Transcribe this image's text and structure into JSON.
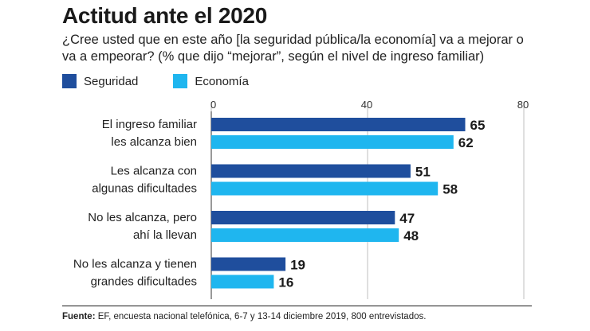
{
  "title": "Actitud ante el 2020",
  "subtitle": "¿Cree usted que en este año [la seguridad pública/la economía] va a mejorar o va a empeorar? (% que dijo “mejorar”, según el nivel de ingreso familiar)",
  "source_label": "Fuente:",
  "source_text": " EF, encuesta nacional telefónica, 6-7 y 13-14 diciembre 2019, 800 entrevistados.",
  "colors": {
    "seguridad": "#1f4e9d",
    "economia": "#1fb6ef",
    "text": "#1a1a1a",
    "grid": "#bfbfbf"
  },
  "chart_data": {
    "type": "bar",
    "orientation": "horizontal",
    "title": "Actitud ante el 2020",
    "xlim": [
      0,
      80
    ],
    "xticks": [
      0,
      40,
      80
    ],
    "grid": true,
    "legend_position": "top-left",
    "categories": [
      [
        "El ingreso familiar",
        "les alcanza bien"
      ],
      [
        "Les alcanza con",
        "algunas dificultades"
      ],
      [
        "No les alcanza, pero",
        "ahí la llevan"
      ],
      [
        "No les alcanza y tienen",
        "grandes dificultades"
      ]
    ],
    "series": [
      {
        "name": "Seguridad",
        "color": "#1f4e9d",
        "values": [
          65,
          51,
          47,
          19
        ]
      },
      {
        "name": "Economía",
        "color": "#1fb6ef",
        "values": [
          62,
          58,
          48,
          16
        ]
      }
    ]
  }
}
